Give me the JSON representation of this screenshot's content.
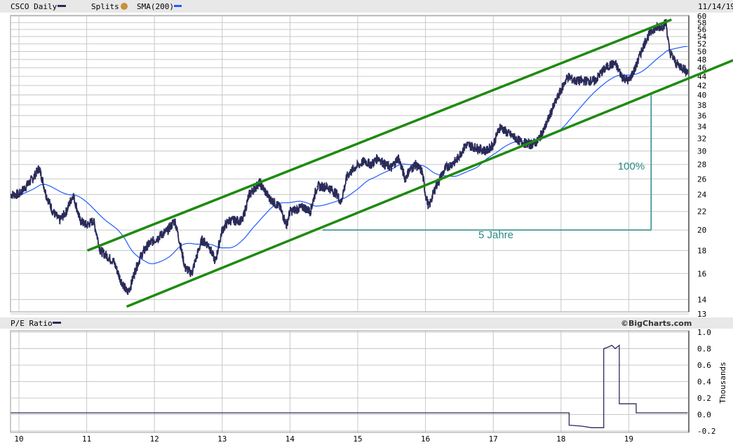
{
  "header": {
    "symbol_label": "CSCO Daily",
    "splits_label": "Splits",
    "splits_icon": "dollar-coin-icon",
    "sma_label": "SMA(200)",
    "date": "11/14/19"
  },
  "pe_header": {
    "label": "P/E Ratio",
    "credit": "©BigCharts.com"
  },
  "colors": {
    "price": "#2a2a5a",
    "sma": "#1f5cff",
    "trend": "#1e8a10",
    "annotation": "#2a8a86",
    "splits": "#c8903a"
  },
  "chart_data": [
    {
      "type": "line",
      "title": "CSCO Daily",
      "y_scale": "log",
      "ylim": [
        13,
        60
      ],
      "y_ticks": [
        60,
        58,
        56,
        54,
        52,
        50,
        48,
        46,
        44,
        42,
        40,
        38,
        36,
        34,
        32,
        30,
        28,
        26,
        24,
        22,
        20,
        18,
        16,
        14,
        13
      ],
      "x_ticks": [
        "10",
        "11",
        "12",
        "13",
        "14",
        "15",
        "16",
        "17",
        "18",
        "19"
      ],
      "x_tick_years": [
        2010,
        2011,
        2012,
        2013,
        2014,
        2015,
        2016,
        2017,
        2018,
        2019
      ],
      "xlim": [
        2009.88,
        2019.87
      ],
      "grid": true,
      "series": [
        {
          "name": "CSCO Daily",
          "x": [
            2009.88,
            2010.0,
            2010.2,
            2010.3,
            2010.4,
            2010.5,
            2010.6,
            2010.7,
            2010.8,
            2010.9,
            2011.0,
            2011.1,
            2011.2,
            2011.3,
            2011.4,
            2011.5,
            2011.6,
            2011.65,
            2011.7,
            2011.8,
            2011.9,
            2012.0,
            2012.2,
            2012.3,
            2012.35,
            2012.45,
            2012.55,
            2012.6,
            2012.7,
            2012.8,
            2012.9,
            2013.0,
            2013.1,
            2013.2,
            2013.3,
            2013.4,
            2013.55,
            2013.7,
            2013.85,
            2013.95,
            2014.0,
            2014.2,
            2014.3,
            2014.4,
            2014.55,
            2014.7,
            2014.75,
            2014.85,
            2014.95,
            2015.1,
            2015.2,
            2015.3,
            2015.4,
            2015.5,
            2015.6,
            2015.7,
            2015.75,
            2015.85,
            2015.95,
            2016.0,
            2016.05,
            2016.15,
            2016.3,
            2016.45,
            2016.6,
            2016.75,
            2016.9,
            2017.0,
            2017.1,
            2017.2,
            2017.4,
            2017.55,
            2017.65,
            2017.75,
            2017.9,
            2018.0,
            2018.1,
            2018.2,
            2018.35,
            2018.5,
            2018.6,
            2018.7,
            2018.8,
            2018.9,
            2019.0,
            2019.1,
            2019.25,
            2019.35,
            2019.5,
            2019.55,
            2019.6,
            2019.7,
            2019.8,
            2019.87
          ],
          "values": [
            24,
            24,
            26,
            27.5,
            24,
            22,
            21,
            22,
            24,
            21,
            20.5,
            21,
            18,
            17.5,
            17,
            15.5,
            14.5,
            15,
            16,
            17.5,
            18.5,
            19,
            20,
            21,
            19.5,
            16.5,
            16,
            17,
            19,
            18.5,
            17,
            20,
            21,
            21,
            21,
            24,
            25.5,
            23.5,
            22.5,
            20.5,
            22,
            22.5,
            22,
            25,
            25,
            24,
            23,
            26.5,
            27.5,
            28.5,
            28,
            29,
            28,
            27.5,
            29,
            26,
            27,
            28,
            27,
            24,
            22.5,
            25,
            27.5,
            28.5,
            31,
            30.5,
            30,
            31,
            34,
            33,
            31.5,
            31,
            31.5,
            33.5,
            38,
            41,
            44,
            43,
            43,
            43,
            45,
            46.5,
            47,
            44,
            43,
            46,
            53,
            56,
            57,
            58,
            50,
            47,
            46,
            45
          ]
        },
        {
          "name": "SMA(200)",
          "computed_from": "CSCO Daily",
          "window_days": 200
        }
      ],
      "trendlines": [
        {
          "from": [
            2011.01,
            18.0
          ],
          "to": [
            2019.63,
            58.9
          ]
        },
        {
          "from": [
            2011.59,
            13.5
          ],
          "to": [
            2020.54,
            47.8
          ]
        }
      ],
      "annotations": [
        {
          "text": "5 Jahre",
          "from": [
            2014.48,
            20
          ],
          "to": [
            2019.33,
            20
          ]
        },
        {
          "text": "100%",
          "from": [
            2019.33,
            20
          ],
          "to": [
            2019.33,
            40
          ]
        }
      ]
    },
    {
      "type": "line",
      "title": "P/E Ratio",
      "ylabel": "Thousands",
      "ylim": [
        -0.2,
        1.0
      ],
      "y_ticks": [
        "1.0",
        "0.8",
        "0.6",
        "0.4",
        "0.2",
        "0.0",
        "-0.2"
      ],
      "grid": true,
      "series": [
        {
          "name": "P/E Ratio",
          "x": [
            2009.88,
            2018.12,
            2018.12,
            2018.3,
            2018.45,
            2018.63,
            2018.63,
            2018.7,
            2018.75,
            2018.8,
            2018.86,
            2018.86,
            2019.11,
            2019.11,
            2019.87
          ],
          "values": [
            0.02,
            0.02,
            -0.13,
            -0.14,
            -0.16,
            -0.16,
            0.8,
            0.82,
            0.84,
            0.8,
            0.84,
            0.13,
            0.13,
            0.02,
            0.02
          ]
        }
      ]
    }
  ]
}
